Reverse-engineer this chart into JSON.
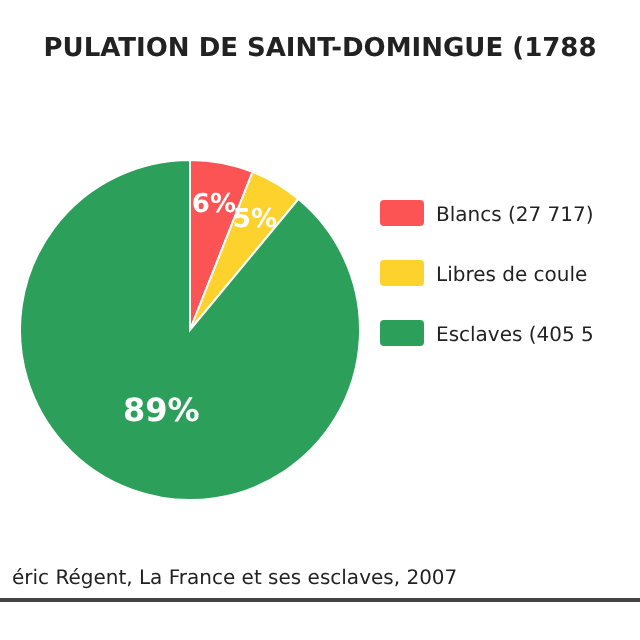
{
  "chart_data": {
    "type": "pie",
    "title": "PULATION DE SAINT-DOMINGUE (1788",
    "categories": [
      "Blancs (27 717)",
      "Libres de coule",
      "Esclaves (405 5"
    ],
    "values": [
      6,
      5,
      89
    ],
    "colors": [
      "#fc5454",
      "#fdd22c",
      "#2ca05a"
    ],
    "value_labels": [
      "6%",
      "5%",
      "89%"
    ],
    "legend": "right",
    "annotations": [
      "éric Régent, La France et ses esclaves, 2007"
    ]
  }
}
